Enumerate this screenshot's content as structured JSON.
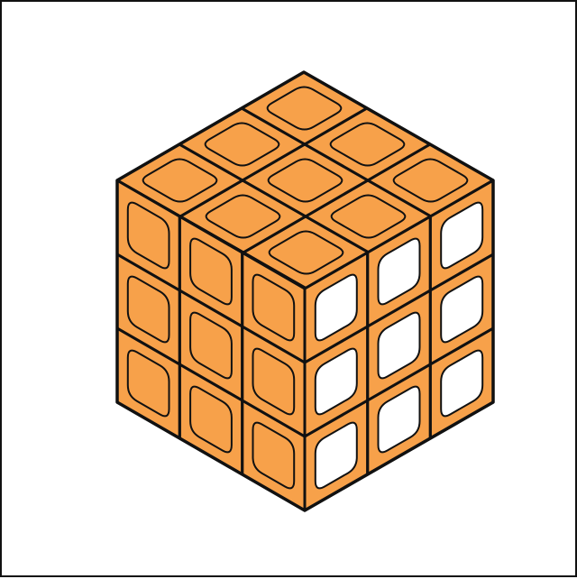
{
  "colors": {
    "background": "#ffffff",
    "frame": "#111111",
    "outline": "#111111",
    "top_face": "#F7A14A",
    "left_face": "#F7A14A",
    "right_face": "#F7A14A",
    "top_stickers": "#F7A14A",
    "left_stickers": "#F7A14A",
    "right_stickers": "#ffffff"
  },
  "cube": {
    "grid_size": 3,
    "faces": [
      {
        "name": "top",
        "sticker_color": "orange"
      },
      {
        "name": "left",
        "sticker_color": "orange"
      },
      {
        "name": "right",
        "sticker_color": "white"
      }
    ]
  }
}
